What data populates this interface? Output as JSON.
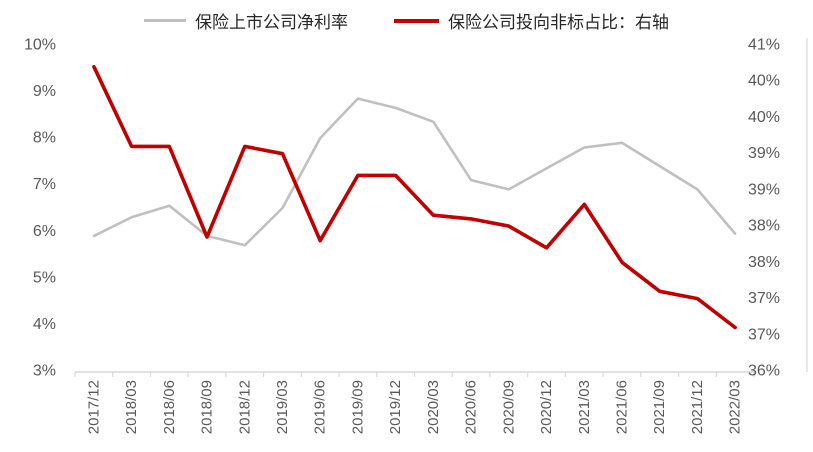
{
  "legend": [
    {
      "label": "保险上市公司净利率",
      "color": "#bfbfbf"
    },
    {
      "label": "保险公司投向非标占比：右轴",
      "color": "#c00000"
    }
  ],
  "chart_data": {
    "type": "line",
    "title": "",
    "categories": [
      "2017/12",
      "2018/03",
      "2018/06",
      "2018/09",
      "2018/12",
      "2019/03",
      "2019/06",
      "2019/09",
      "2019/12",
      "2020/03",
      "2020/06",
      "2020/09",
      "2020/12",
      "2021/03",
      "2021/06",
      "2021/09",
      "2021/12",
      "2022/03"
    ],
    "series": [
      {
        "name": "保险上市公司净利率",
        "axis": "left",
        "color": "#c0c0c0",
        "values": [
          5.9,
          6.3,
          6.55,
          5.9,
          5.7,
          6.5,
          8.0,
          8.85,
          8.65,
          8.35,
          7.1,
          6.9,
          7.35,
          7.8,
          7.9,
          7.4,
          6.9,
          5.95
        ]
      },
      {
        "name": "保险公司投向非标占比：右轴",
        "axis": "right",
        "color": "#c00000",
        "values": [
          40.2,
          39.1,
          39.1,
          37.85,
          39.1,
          39.0,
          37.8,
          38.7,
          38.7,
          38.15,
          38.1,
          38.0,
          37.7,
          38.3,
          37.5,
          37.1,
          37.0,
          36.6
        ]
      }
    ],
    "left_axis": {
      "min": 3,
      "max": 10,
      "step": 1,
      "labels": [
        "10%",
        "9%",
        "8%",
        "7%",
        "6%",
        "5%",
        "4%",
        "3%"
      ]
    },
    "right_axis": {
      "min": 36,
      "max": 40.5,
      "step": 0.5,
      "labels": [
        "41%",
        "40%",
        "40%",
        "39%",
        "39%",
        "38%",
        "38%",
        "37%",
        "37%",
        "36%"
      ]
    },
    "legend_position": "top",
    "grid": false,
    "axis_color": "#d9d9d9",
    "label_color": "#595959"
  }
}
